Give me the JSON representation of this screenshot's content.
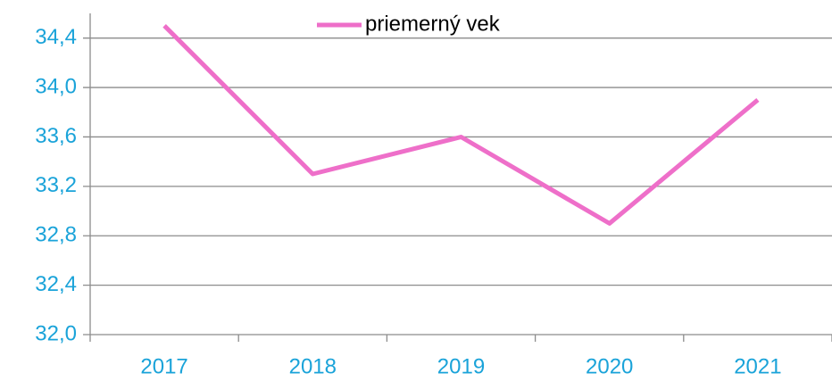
{
  "chart_data": {
    "type": "line",
    "categories": [
      "2017",
      "2018",
      "2019",
      "2020",
      "2021"
    ],
    "series": [
      {
        "name": "priemerný vek",
        "color": "#ee6fc9",
        "values": [
          34.5,
          33.3,
          33.6,
          32.9,
          33.9
        ]
      }
    ],
    "ylim": [
      32.0,
      34.6
    ],
    "yticks": [
      {
        "value": 32.0,
        "label": "32,0"
      },
      {
        "value": 32.4,
        "label": "32,4"
      },
      {
        "value": 32.8,
        "label": "32,8"
      },
      {
        "value": 33.2,
        "label": "33,2"
      },
      {
        "value": 33.6,
        "label": "33,6"
      },
      {
        "value": 34.0,
        "label": "34,0"
      },
      {
        "value": 34.4,
        "label": "34,4"
      }
    ],
    "grid": true,
    "legend": "top"
  }
}
